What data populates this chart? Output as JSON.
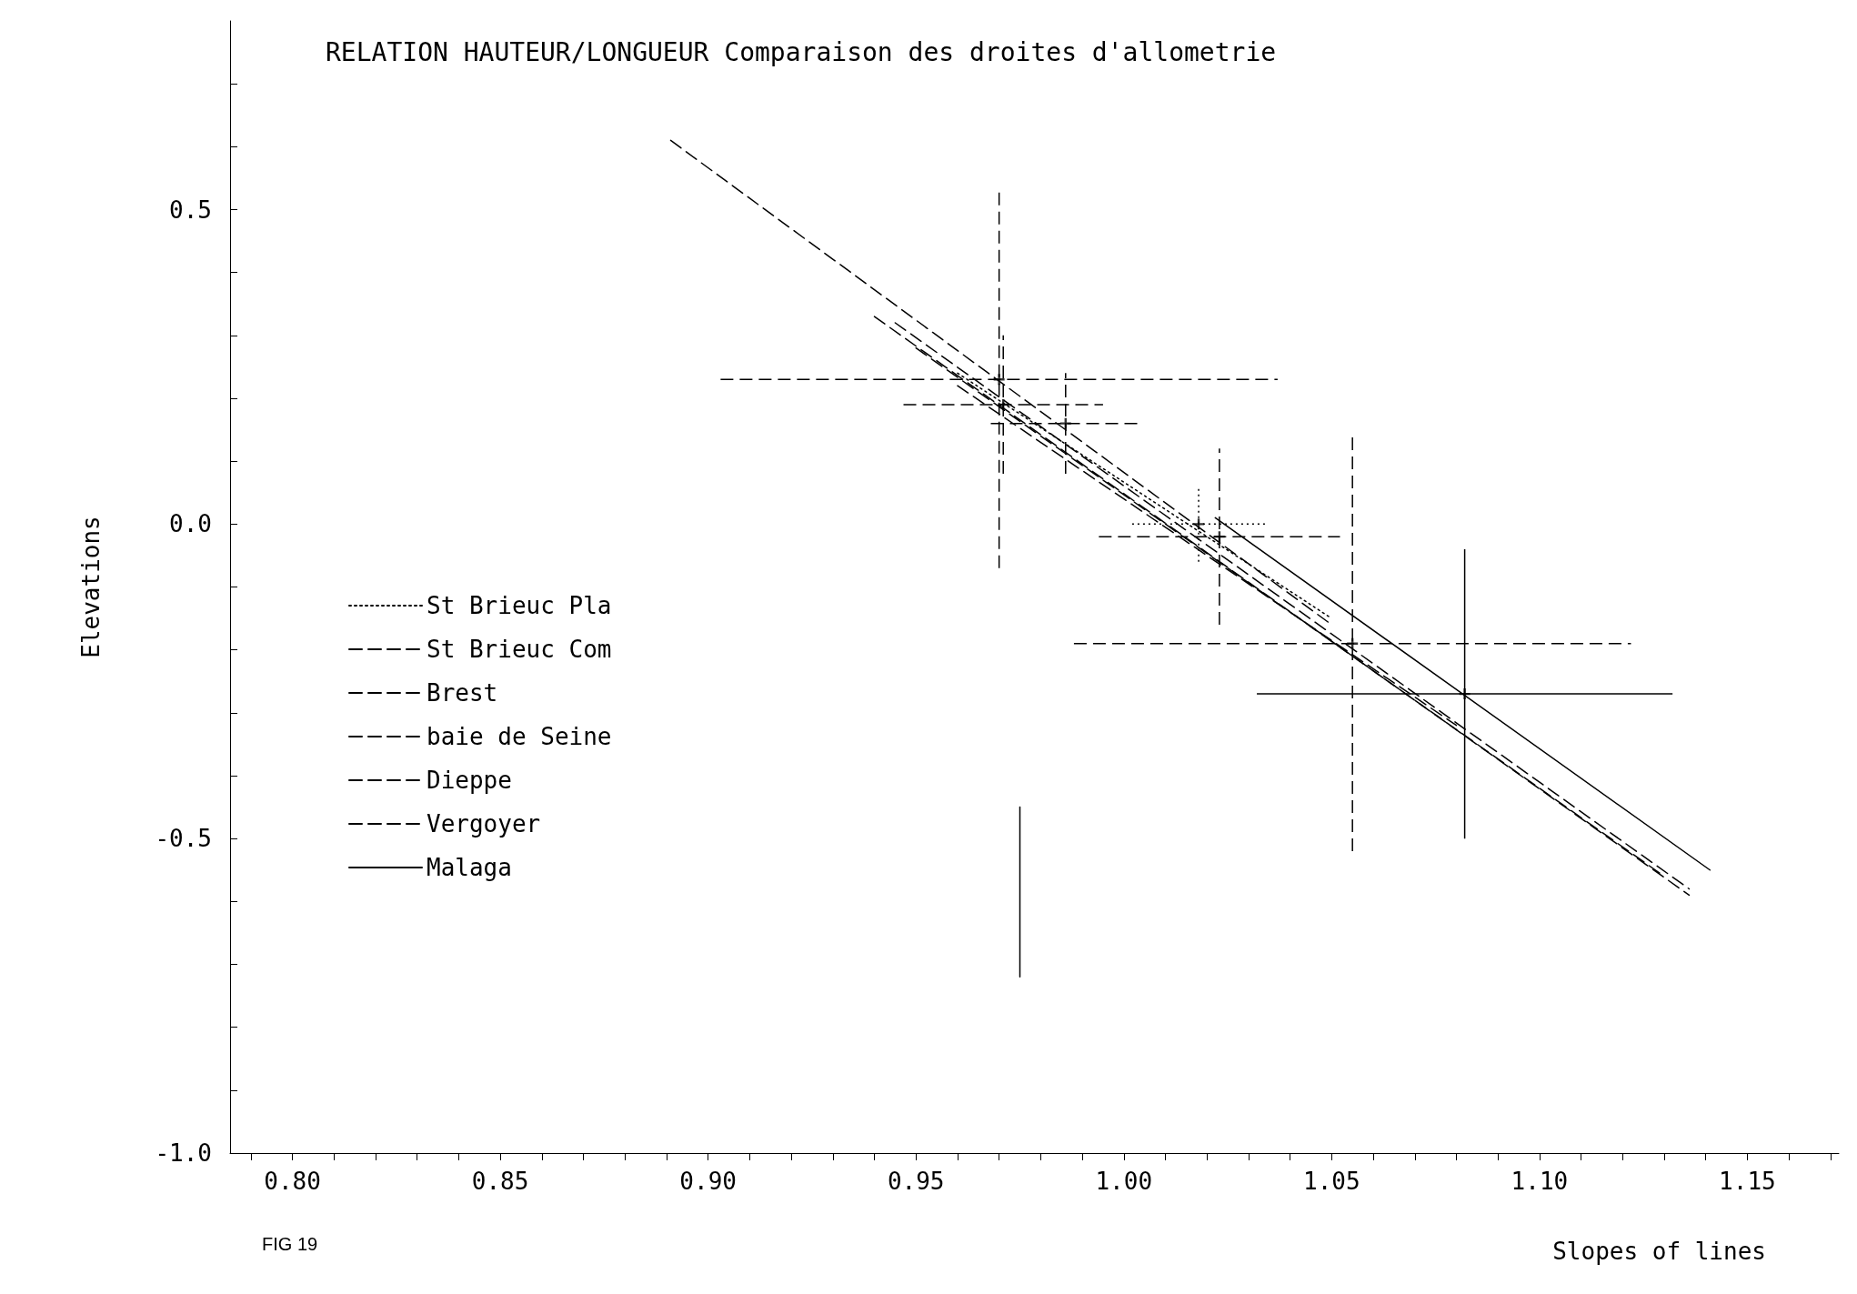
{
  "chart_data": {
    "type": "line",
    "title": "RELATION HAUTEUR/LONGUEUR Comparaison des droites d'allometrie",
    "xlabel": "Slopes of lines",
    "ylabel": "Elevations",
    "annotations": [
      "FIG 19"
    ],
    "xlim": [
      0.785,
      1.172
    ],
    "ylim": [
      -1.0,
      0.8
    ],
    "xticks": [
      {
        "value": 0.79,
        "label": null
      },
      {
        "value": 0.8,
        "label": "0.80"
      },
      {
        "value": 0.81,
        "label": null
      },
      {
        "value": 0.82,
        "label": null
      },
      {
        "value": 0.83,
        "label": null
      },
      {
        "value": 0.84,
        "label": null
      },
      {
        "value": 0.85,
        "label": "0.85"
      },
      {
        "value": 0.86,
        "label": null
      },
      {
        "value": 0.87,
        "label": null
      },
      {
        "value": 0.88,
        "label": null
      },
      {
        "value": 0.89,
        "label": null
      },
      {
        "value": 0.9,
        "label": "0.90"
      },
      {
        "value": 0.91,
        "label": null
      },
      {
        "value": 0.92,
        "label": null
      },
      {
        "value": 0.93,
        "label": null
      },
      {
        "value": 0.94,
        "label": null
      },
      {
        "value": 0.95,
        "label": "0.95"
      },
      {
        "value": 0.96,
        "label": null
      },
      {
        "value": 0.97,
        "label": null
      },
      {
        "value": 0.98,
        "label": null
      },
      {
        "value": 0.99,
        "label": null
      },
      {
        "value": 1.0,
        "label": "1.00"
      },
      {
        "value": 1.01,
        "label": null
      },
      {
        "value": 1.02,
        "label": null
      },
      {
        "value": 1.03,
        "label": null
      },
      {
        "value": 1.04,
        "label": null
      },
      {
        "value": 1.05,
        "label": "1.05"
      },
      {
        "value": 1.06,
        "label": null
      },
      {
        "value": 1.07,
        "label": null
      },
      {
        "value": 1.08,
        "label": null
      },
      {
        "value": 1.09,
        "label": null
      },
      {
        "value": 1.1,
        "label": "1.10"
      },
      {
        "value": 1.11,
        "label": null
      },
      {
        "value": 1.12,
        "label": null
      },
      {
        "value": 1.13,
        "label": null
      },
      {
        "value": 1.14,
        "label": null
      },
      {
        "value": 1.15,
        "label": "1.15"
      },
      {
        "value": 1.16,
        "label": null
      },
      {
        "value": 1.17,
        "label": null
      }
    ],
    "yticks": [
      {
        "value": -1.0,
        "label": "-1.0"
      },
      {
        "value": -0.9,
        "label": null
      },
      {
        "value": -0.8,
        "label": null
      },
      {
        "value": -0.7,
        "label": null
      },
      {
        "value": -0.6,
        "label": null
      },
      {
        "value": -0.5,
        "label": "-0.5"
      },
      {
        "value": -0.4,
        "label": null
      },
      {
        "value": -0.3,
        "label": null
      },
      {
        "value": -0.2,
        "label": null
      },
      {
        "value": -0.1,
        "label": null
      },
      {
        "value": 0,
        "label": "0.0"
      },
      {
        "value": 0.1,
        "label": null
      },
      {
        "value": 0.2,
        "label": null
      },
      {
        "value": 0.3,
        "label": null
      },
      {
        "value": 0.4,
        "label": null
      },
      {
        "value": 0.5,
        "label": "0.5"
      },
      {
        "value": 0.6,
        "label": null
      },
      {
        "value": 0.7,
        "label": null
      }
    ],
    "grid": false,
    "legend": "left",
    "marker": "none",
    "series": [
      {
        "name": "St Brieuc Pla",
        "color": "#000000",
        "line_style": "dotted",
        "x": [
          0.96,
          1.05
        ],
        "values": [
          0.24,
          -0.15
        ]
      },
      {
        "name": "St Brieuc Com",
        "color": "#000000",
        "line_style": "dashed",
        "x": [
          0.94,
          1.136
        ],
        "values": [
          0.33,
          -0.59
        ]
      },
      {
        "name": "Brest",
        "color": "#000000",
        "line_style": "dashed",
        "x": [
          0.891,
          1.05
        ],
        "values": [
          0.61,
          -0.16
        ]
      },
      {
        "name": "baie de Seine",
        "color": "#000000",
        "line_style": "dashed",
        "x": [
          0.945,
          1.136
        ],
        "values": [
          0.32,
          -0.58
        ]
      },
      {
        "name": "Dieppe",
        "color": "#000000",
        "line_style": "dashed",
        "x": [
          0.96,
          1.08
        ],
        "values": [
          0.22,
          -0.32
        ]
      },
      {
        "name": "Vergoyer",
        "color": "#000000",
        "line_style": "dashed",
        "x": [
          0.95,
          1.13
        ],
        "values": [
          0.28,
          -0.56
        ]
      },
      {
        "name": "Malaga",
        "color": "#000000",
        "line_style": "solid",
        "x": [
          1.022,
          1.141
        ],
        "values": [
          0.01,
          -0.55
        ]
      },
      {
        "type": "scatter",
        "color": "#000000",
        "marker": "cross",
        "line_style": "dotted",
        "x": [
          1.018
        ],
        "values": [
          0.0
        ],
        "errors": [
          0.06
        ],
        "xerrors": [
          0.016
        ]
      },
      {
        "type": "scatter",
        "color": "#000000",
        "marker": "cross",
        "line_style": "dashed",
        "x": [
          0.986
        ],
        "values": [
          0.16
        ],
        "errors": [
          0.08
        ],
        "xerrors": [
          0.018
        ]
      },
      {
        "type": "scatter",
        "color": "#000000",
        "marker": "cross",
        "line_style": "dashed",
        "x": [
          0.97
        ],
        "values": [
          0.23
        ],
        "errors": [
          0.3
        ],
        "xerrors": [
          0.067
        ]
      },
      {
        "type": "scatter",
        "color": "#000000",
        "marker": "cross",
        "line_style": "dashed",
        "x": [
          0.971
        ],
        "values": [
          0.19
        ],
        "errors": [
          0.11
        ],
        "xerrors": [
          0.024
        ]
      },
      {
        "type": "scatter",
        "color": "#000000",
        "marker": "cross",
        "line_style": "dashed",
        "x": [
          1.023
        ],
        "values": [
          -0.02
        ],
        "errors": [
          0.14
        ],
        "xerrors": [
          0.029
        ]
      },
      {
        "type": "scatter",
        "color": "#000000",
        "marker": "cross",
        "line_style": "dashed",
        "x": [
          1.055
        ],
        "values": [
          -0.19
        ],
        "errors": [
          0.33
        ],
        "xerrors": [
          0.067
        ]
      },
      {
        "type": "scatter",
        "color": "#000000",
        "marker": "cross",
        "line_style": "solid",
        "x": [
          1.082
        ],
        "values": [
          -0.27
        ],
        "errors": [
          0.23
        ],
        "xerrors": [
          0.05
        ]
      },
      {
        "color": "#000000",
        "line_style": "solid",
        "x": [
          0.975,
          0.975
        ],
        "values": [
          -0.45,
          -0.72
        ]
      }
    ]
  }
}
